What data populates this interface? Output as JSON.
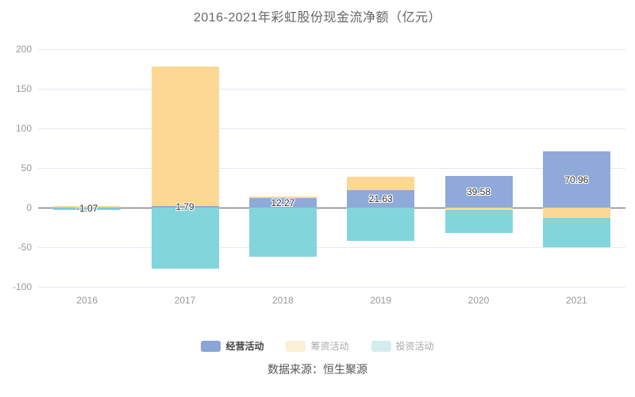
{
  "title": "2016-2021年彩虹股份现金流净额（亿元）",
  "source": "数据来源：恒生聚源",
  "colors": {
    "grid": "#e3e9f3",
    "zero_line": "#555555",
    "axis_label": "#999999",
    "title_text": "#666666",
    "value_label": "#333333",
    "source_text": "#555555"
  },
  "chart_data": {
    "type": "bar",
    "stacked": true,
    "title": "2016-2021年彩虹股份现金流净额（亿元）",
    "xlabel": "",
    "ylabel": "",
    "categories": [
      "2016",
      "2017",
      "2018",
      "2019",
      "2020",
      "2021"
    ],
    "series": [
      {
        "name": "经营活动",
        "color": "#8fa9d8",
        "values": [
          -1.07,
          1.79,
          12.27,
          21.63,
          39.58,
          70.96
        ]
      },
      {
        "name": "筹资活动",
        "color": "#fdd894",
        "values": [
          2,
          176,
          2,
          17.5,
          -3,
          -12.5
        ]
      },
      {
        "name": "投资活动",
        "color": "#82d6db",
        "values": [
          -2,
          -77,
          -62,
          -42,
          -29,
          -37.5
        ]
      }
    ],
    "data_labels": [
      "-1.07",
      "1.79",
      "12.27",
      "21.63",
      "39.58",
      "70.96"
    ],
    "labeled_series": "经营活动",
    "ylim": [
      -100,
      200
    ],
    "yticks": [
      200,
      150,
      100,
      50,
      0,
      -50,
      -100
    ],
    "grid": true,
    "legend_position": "bottom"
  },
  "legend": {
    "items": [
      {
        "label": "经营活动",
        "swatch_color": "#8aa5d6",
        "text_color": "#464646",
        "bold": true
      },
      {
        "label": "筹资活动",
        "swatch_color": "#fbefd5",
        "text_color": "#a8a8a8",
        "bold": false
      },
      {
        "label": "投资活动",
        "swatch_color": "#d3edef",
        "text_color": "#a8a8a8",
        "bold": false
      }
    ]
  }
}
